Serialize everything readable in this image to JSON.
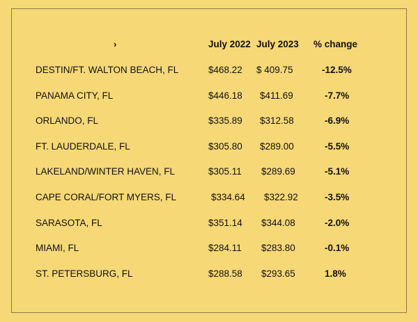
{
  "header": {
    "marker": "›",
    "col_2022": "July 2022",
    "col_2023": "July 2023",
    "col_change": "% change"
  },
  "rows": [
    {
      "city": "DESTIN/FT. WALTON BEACH, FL",
      "y2022": "$468.22",
      "y2023": "$ 409.75",
      "change": "-12.5%"
    },
    {
      "city": "PANAMA CITY, FL",
      "y2022": "$446.18",
      "y2023": "$411.69",
      "change": "-7.7%"
    },
    {
      "city": "ORLANDO, FL",
      "y2022": "$335.89",
      "y2023": "$312.58",
      "change": "-6.9%"
    },
    {
      "city": "FT. LAUDERDALE, FL",
      "y2022": "$305.80",
      "y2023": "$289.00",
      "change": "-5.5%"
    },
    {
      "city": "LAKELAND/WINTER HAVEN, FL",
      "y2022": "$305.11",
      "y2023": "$289.69",
      "change": "-5.1%"
    },
    {
      "city": "CAPE CORAL/FORT MYERS, FL",
      "y2022": "$334.64",
      "y2023": "$322.92",
      "change": "-3.5%"
    },
    {
      "city": "SARASOTA, FL",
      "y2022": "$351.14",
      "y2023": "$344.08",
      "change": "-2.0%"
    },
    {
      "city": "MIAMI, FL",
      "y2022": "$284.11",
      "y2023": "$283.80",
      "change": "-0.1%"
    },
    {
      "city": "ST. PETERSBURG, FL",
      "y2022": "$288.58",
      "y2023": "$293.65",
      "change": "1.8%"
    }
  ]
}
